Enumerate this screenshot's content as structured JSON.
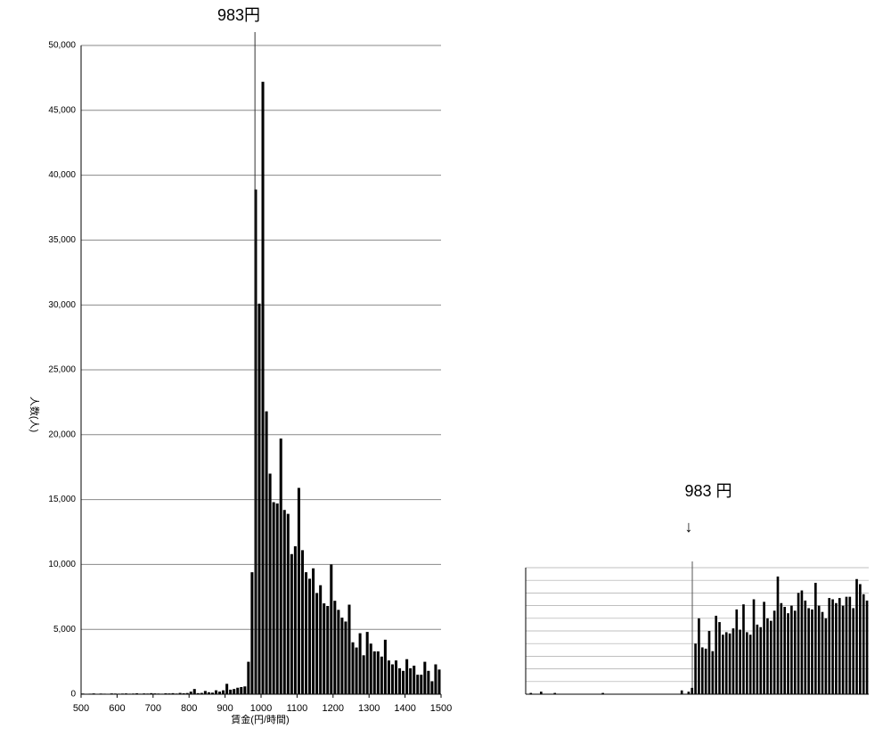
{
  "chart_data": [
    {
      "type": "histogram",
      "annotation": {
        "x": 983,
        "label": "983円"
      },
      "ylabel": "人数(人)",
      "xlabel": "賃金(円/時間)",
      "bins": [
        500,
        510,
        520,
        530,
        540,
        550,
        560,
        570,
        580,
        590,
        600,
        610,
        620,
        630,
        640,
        650,
        660,
        670,
        680,
        690,
        700,
        710,
        720,
        730,
        740,
        750,
        760,
        770,
        780,
        790,
        800,
        810,
        820,
        830,
        840,
        850,
        860,
        870,
        880,
        890,
        900,
        910,
        920,
        930,
        940,
        950,
        960,
        970,
        980,
        990,
        1000,
        1010,
        1020,
        1030,
        1040,
        1050,
        1060,
        1070,
        1080,
        1090,
        1100,
        1110,
        1120,
        1130,
        1140,
        1150,
        1160,
        1170,
        1180,
        1190,
        1200,
        1210,
        1220,
        1230,
        1240,
        1250,
        1260,
        1270,
        1280,
        1290,
        1300,
        1310,
        1320,
        1330,
        1340,
        1350,
        1360,
        1370,
        1380,
        1390,
        1400,
        1410,
        1420,
        1430,
        1440,
        1450,
        1460,
        1470,
        1480,
        1490,
        1500
      ],
      "values": [
        50,
        30,
        40,
        60,
        30,
        50,
        40,
        30,
        60,
        50,
        40,
        50,
        60,
        40,
        50,
        70,
        40,
        60,
        50,
        80,
        60,
        50,
        40,
        70,
        60,
        80,
        50,
        100,
        70,
        90,
        200,
        400,
        80,
        100,
        250,
        150,
        120,
        300,
        200,
        300,
        800,
        350,
        400,
        500,
        550,
        600,
        2500,
        9400,
        38900,
        30100,
        47200,
        21800,
        17000,
        14800,
        14700,
        19700,
        14200,
        13900,
        10800,
        11400,
        15900,
        11100,
        9400,
        8900,
        9700,
        7800,
        8400,
        7000,
        6800,
        10000,
        7200,
        6500,
        5900,
        5600,
        6900,
        4000,
        3600,
        4700,
        3000,
        4800,
        3900,
        3300,
        3300,
        2900,
        4200,
        2600,
        2300,
        2600,
        2000,
        1800,
        2700,
        2000,
        2200,
        1500,
        1500,
        2500,
        1800,
        1000,
        2300,
        1900
      ],
      "color": "#000000",
      "xlim": [
        500,
        1500
      ],
      "xticks": [
        500,
        600,
        700,
        800,
        900,
        1000,
        1100,
        1200,
        1300,
        1400,
        1500
      ],
      "ylim": [
        0,
        50000
      ],
      "yticks": [
        {
          "value": 0,
          "label": "0"
        },
        {
          "value": 5000,
          "label": "5,000"
        },
        {
          "value": 10000,
          "label": "10,000"
        },
        {
          "value": 15000,
          "label": "15,000"
        },
        {
          "value": 20000,
          "label": "20,000"
        },
        {
          "value": 25000,
          "label": "25,000"
        },
        {
          "value": 30000,
          "label": "30,000"
        },
        {
          "value": 35000,
          "label": "35,000"
        },
        {
          "value": 40000,
          "label": "40,000"
        },
        {
          "value": 45000,
          "label": "45,000"
        },
        {
          "value": 50000,
          "label": "50,000"
        }
      ],
      "grid": true
    },
    {
      "type": "bar",
      "annotation": "983 円",
      "arrow": "↓",
      "values": [
        0,
        1,
        0,
        0,
        2,
        0,
        0,
        0,
        1,
        0,
        0,
        0,
        0,
        0,
        0,
        0,
        0,
        0,
        0,
        0,
        0,
        0,
        1,
        0,
        0,
        0,
        0,
        0,
        0,
        0,
        0,
        0,
        0,
        0,
        0,
        0,
        0,
        0,
        0,
        0,
        0,
        0,
        0,
        0,
        0,
        3,
        0,
        2,
        5,
        40,
        60,
        37,
        36,
        50,
        34,
        62,
        57,
        47,
        49,
        48,
        52,
        67,
        51,
        71,
        49,
        47,
        75,
        55,
        53,
        73,
        60,
        58,
        66,
        93,
        72,
        69,
        64,
        70,
        66,
        80,
        82,
        74,
        68,
        67,
        88,
        70,
        65,
        60,
        76,
        75,
        72,
        76,
        70,
        77,
        77,
        68,
        91,
        87,
        79,
        74
      ],
      "color": "#000000",
      "ylim": [
        0,
        100
      ],
      "grid": true
    }
  ]
}
